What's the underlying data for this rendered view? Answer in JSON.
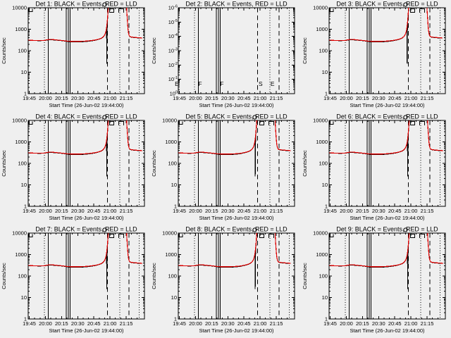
{
  "app": {
    "background": "#efefef",
    "foreground": "#000000",
    "accent_red": "#dd0000"
  },
  "chart_data": {
    "type": "line",
    "grid": {
      "rows": 3,
      "cols": 3
    },
    "xlabel": "Start Time (26-Jun-02 19:44:00)",
    "ylabel": "Counts/sec",
    "x_domain_minutes": [
      0,
      108
    ],
    "x_minor_step": 5,
    "x_ticks": [
      {
        "t": 1,
        "label": "19:45"
      },
      {
        "t": 16,
        "label": "20:00"
      },
      {
        "t": 31,
        "label": "20:15"
      },
      {
        "t": 46,
        "label": "20:30"
      },
      {
        "t": 61,
        "label": "20:45"
      },
      {
        "t": 76,
        "label": "21:00"
      },
      {
        "t": 91,
        "label": "21:15"
      }
    ],
    "y_axis_log": {
      "min": 1,
      "max": 10000,
      "labels": [
        "10000",
        "1000",
        "100",
        "10",
        "1"
      ]
    },
    "empty_y_exponents": [
      -6,
      -5,
      -4,
      -3,
      -2,
      -1,
      0
    ],
    "vlines": [
      {
        "style": "dotted",
        "t": 15
      },
      {
        "style": "solid",
        "t": 18.5
      },
      {
        "style": "solid",
        "t": 35.5
      },
      {
        "style": "solid",
        "t": 37.2
      },
      {
        "style": "solid",
        "t": 38.8
      },
      {
        "style": "dashed",
        "t": 73.5
      },
      {
        "style": "dotted",
        "t": 85
      },
      {
        "style": "dashed",
        "t": 93.5
      },
      {
        "style": "dotted",
        "t": 103
      }
    ],
    "flags_top": [
      {
        "glyph": "corner",
        "t": 0.7
      },
      {
        "glyph": "circle",
        "t": 71
      },
      {
        "glyph": "box",
        "t": 77.5
      },
      {
        "glyph": "cap",
        "t": 86.5
      }
    ],
    "series": {
      "red_lld": [
        [
          0,
          310
        ],
        [
          3,
          305
        ],
        [
          6,
          300
        ],
        [
          9,
          298
        ],
        [
          12,
          297
        ],
        [
          15,
          300
        ],
        [
          17,
          318
        ],
        [
          19,
          330
        ],
        [
          21,
          335
        ],
        [
          23,
          330
        ],
        [
          25,
          322
        ],
        [
          27,
          314
        ],
        [
          29,
          307
        ],
        [
          31,
          300
        ],
        [
          33,
          292
        ],
        [
          35,
          283
        ],
        [
          37,
          277
        ],
        [
          39,
          273
        ],
        [
          41,
          271
        ],
        [
          43,
          270
        ],
        [
          45,
          270
        ],
        [
          47,
          271
        ],
        [
          49,
          273
        ],
        [
          51,
          276
        ],
        [
          53,
          280
        ],
        [
          55,
          285
        ],
        [
          57,
          291
        ],
        [
          59,
          299
        ],
        [
          61,
          308
        ],
        [
          63,
          320
        ],
        [
          65,
          338
        ],
        [
          67,
          365
        ],
        [
          68,
          385
        ],
        [
          69,
          415
        ],
        [
          70,
          460
        ],
        [
          71,
          540
        ],
        [
          71.8,
          680
        ],
        [
          72.4,
          900
        ],
        [
          72.9,
          1300
        ],
        [
          73.3,
          2000
        ],
        [
          73.7,
          3300
        ],
        [
          74,
          5500
        ],
        [
          74.3,
          9000
        ],
        [
          74.6,
          20000
        ],
        [
          91.2,
          20000
        ],
        [
          91.5,
          8000
        ],
        [
          91.9,
          3800
        ],
        [
          92.3,
          1900
        ],
        [
          92.7,
          1050
        ],
        [
          93.1,
          700
        ],
        [
          93.6,
          540
        ],
        [
          94.2,
          470
        ],
        [
          95,
          445
        ],
        [
          96.5,
          430
        ],
        [
          98,
          420
        ],
        [
          100,
          412
        ],
        [
          102,
          405
        ],
        [
          104,
          398
        ],
        [
          106,
          390
        ]
      ],
      "black_events": [
        [
          0,
          300
        ],
        [
          3,
          297
        ],
        [
          6,
          294
        ],
        [
          9,
          293
        ],
        [
          12,
          293
        ],
        [
          15,
          296
        ],
        [
          17,
          308
        ],
        [
          19,
          318
        ],
        [
          21,
          320
        ],
        [
          23,
          317
        ],
        [
          25,
          311
        ],
        [
          27,
          305
        ],
        [
          29,
          299
        ],
        [
          31,
          293
        ],
        [
          33,
          285
        ],
        [
          35,
          272
        ],
        [
          37,
          263
        ],
        [
          39,
          258
        ],
        [
          41,
          256
        ],
        [
          43,
          255
        ],
        [
          45,
          255
        ],
        [
          47,
          256
        ],
        [
          49,
          258
        ],
        [
          51,
          261
        ],
        [
          53,
          265
        ],
        [
          55,
          271
        ],
        [
          57,
          279
        ],
        [
          59,
          288
        ],
        [
          61,
          298
        ],
        [
          63,
          311
        ],
        [
          65,
          330
        ],
        [
          67,
          356
        ],
        [
          68,
          376
        ],
        [
          69,
          406
        ],
        [
          70,
          450
        ],
        [
          71,
          528
        ],
        [
          71.8,
          660
        ],
        [
          72.4,
          870
        ],
        [
          72.7,
          1050
        ],
        [
          72.85,
          300
        ],
        [
          73,
          25
        ],
        [
          73.15,
          300
        ],
        [
          73.4,
          1500
        ],
        [
          73.8,
          3100
        ],
        [
          74.1,
          5300
        ],
        [
          74.5,
          8800
        ],
        [
          74.7,
          20000
        ],
        [
          91.3,
          20000
        ],
        [
          91.6,
          7500
        ],
        [
          92,
          3600
        ],
        [
          92.4,
          1800
        ],
        [
          92.8,
          1000
        ],
        [
          93.2,
          670
        ],
        [
          93.7,
          520
        ],
        [
          94.3,
          455
        ],
        [
          95.1,
          433
        ],
        [
          96.5,
          418
        ],
        [
          98,
          408
        ],
        [
          100,
          400
        ],
        [
          102,
          394
        ],
        [
          104,
          388
        ],
        [
          106,
          382
        ]
      ]
    },
    "plots": [
      {
        "id": "det1",
        "title": "Det 1: BLACK = Events, RED = LLD",
        "kind": "data",
        "peak_shift": 0
      },
      {
        "id": "det2",
        "title": "Det 2: BLACK = Events, RED = LLD",
        "kind": "empty",
        "letters": [
          {
            "ch": "E",
            "t": -1.3
          },
          {
            "ch": "F",
            "t": 20.3
          },
          {
            "ch": "F",
            "t": 40.5
          },
          {
            "ch": "S",
            "t": 76.5
          },
          {
            "ch": "E",
            "t": 87.5
          }
        ]
      },
      {
        "id": "det3",
        "title": "Det 3: BLACK = Events, RED = LLD",
        "kind": "data",
        "peak_shift": -0.5
      },
      {
        "id": "det4",
        "title": "Det 4: BLACK = Events, RED = LLD",
        "kind": "data",
        "peak_shift": 0
      },
      {
        "id": "det5",
        "title": "Det 5: BLACK = Events, RED = LLD",
        "kind": "data",
        "peak_shift": -1.5
      },
      {
        "id": "det6",
        "title": "Det 6: BLACK = Events, RED = LLD",
        "kind": "data",
        "peak_shift": 0
      },
      {
        "id": "det7",
        "title": "Det 7: BLACK = Events, RED = LLD",
        "kind": "data",
        "peak_shift": 0
      },
      {
        "id": "det8",
        "title": "Det 8: BLACK = Events, RED = LLD",
        "kind": "data",
        "peak_shift": -1.5
      },
      {
        "id": "det9",
        "title": "Det 9: BLACK = Events, RED = LLD",
        "kind": "data",
        "peak_shift": 0
      }
    ]
  }
}
